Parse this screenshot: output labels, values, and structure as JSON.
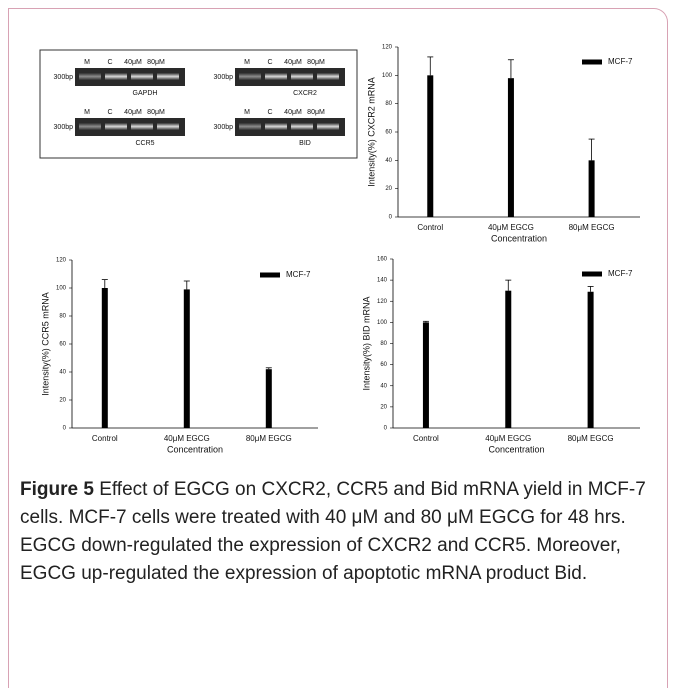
{
  "gel": {
    "panels": [
      {
        "gene": "GAPDH",
        "marker": "300bp",
        "lanes": [
          "M",
          "C",
          "40μM",
          "80μM"
        ]
      },
      {
        "gene": "CXCR2",
        "marker": "300bp",
        "lanes": [
          "M",
          "C",
          "40μM",
          "80μM"
        ]
      },
      {
        "gene": "CCR5",
        "marker": "300bp",
        "lanes": [
          "M",
          "C",
          "40μM",
          "80μM"
        ]
      },
      {
        "gene": "BID",
        "marker": "300bp",
        "lanes": [
          "M",
          "C",
          "40μM",
          "80μM"
        ]
      }
    ]
  },
  "chart_data": [
    {
      "type": "bar",
      "ylabel": "Intensity(%) CXCR2 mRNA",
      "xlabel": "Concentration",
      "categories": [
        "Control",
        "40μM EGCG",
        "80μM EGCG"
      ],
      "series": [
        {
          "name": "MCF-7",
          "color": "#000000",
          "values": [
            100,
            98,
            40
          ],
          "errors": [
            13,
            13,
            15
          ]
        }
      ],
      "ylim": [
        0,
        120
      ],
      "yticks": [
        0,
        20,
        40,
        60,
        80,
        100,
        120
      ],
      "legend": "upper right"
    },
    {
      "type": "bar",
      "ylabel": "Intensity(%) CCR5 mRNA",
      "xlabel": "Concentration",
      "categories": [
        "Control",
        "40μM EGCG",
        "80μM EGCG"
      ],
      "series": [
        {
          "name": "MCF-7",
          "color": "#000000",
          "values": [
            100,
            99,
            42
          ],
          "errors": [
            6,
            6,
            1
          ]
        }
      ],
      "ylim": [
        0,
        120
      ],
      "yticks": [
        0,
        20,
        40,
        60,
        80,
        100,
        120
      ],
      "legend": "upper right"
    },
    {
      "type": "bar",
      "ylabel": "Intensity(%) BID mRNA",
      "xlabel": "Concentration",
      "categories": [
        "Control",
        "40μM EGCG",
        "80μM EGCG"
      ],
      "series": [
        {
          "name": "MCF-7",
          "color": "#000000",
          "values": [
            100,
            130,
            129
          ],
          "errors": [
            1,
            10,
            5
          ]
        }
      ],
      "ylim": [
        0,
        160
      ],
      "yticks": [
        0,
        20,
        40,
        60,
        80,
        100,
        120,
        140,
        160
      ],
      "legend": "upper right"
    }
  ],
  "caption": {
    "label": "Figure 5",
    "text": "Effect of EGCG on CXCR2, CCR5 and Bid mRNA yield in MCF-7 cells. MCF-7 cells were treated with 40 μM and 80 μM EGCG for 48 hrs. EGCG down-regulated the expression of CXCR2 and CCR5. Moreover, EGCG up-regulated the expression of apoptotic mRNA product Bid."
  }
}
